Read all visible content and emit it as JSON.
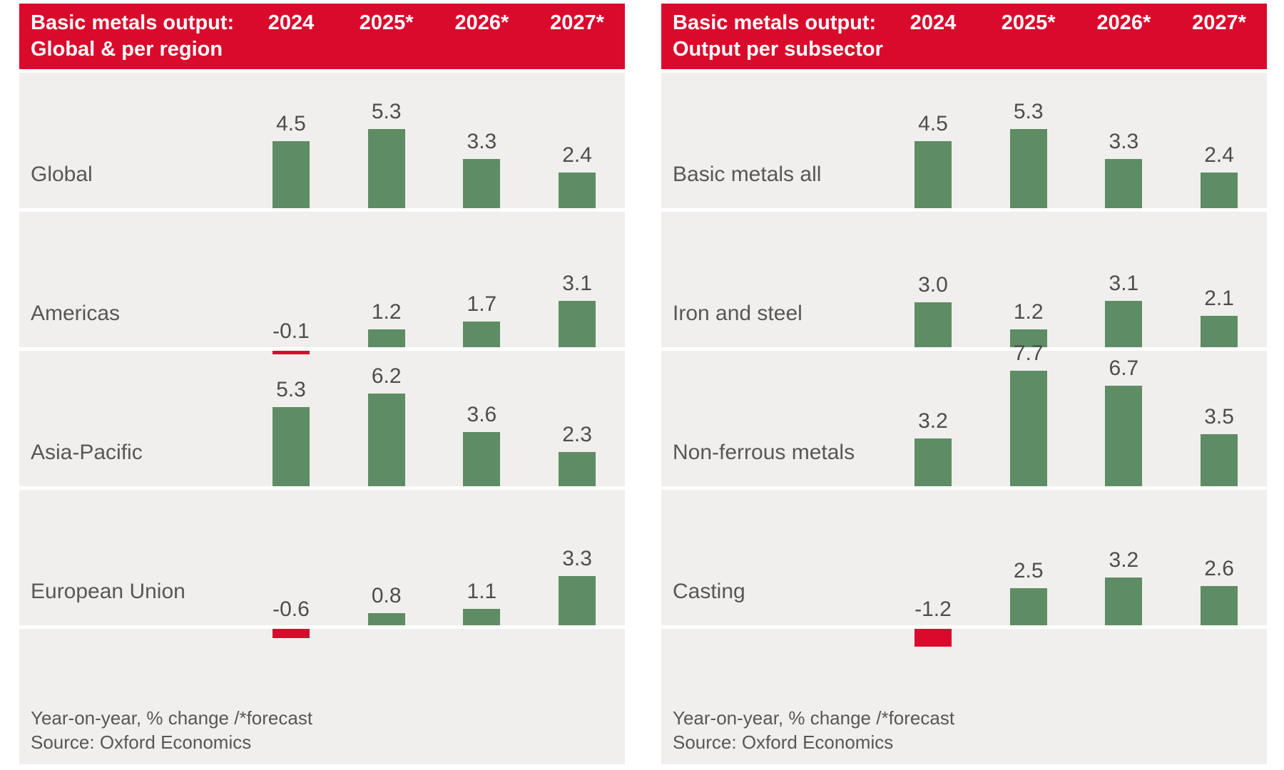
{
  "colors": {
    "header_red": "#DA0A2C",
    "bar_green": "#5E8C64",
    "bar_negative_red": "#DA0A2C",
    "row_background": "#F0EFED",
    "label_gray": "#575756",
    "value_gray": "#4D4D4C",
    "header_text": "#FFFFFF"
  },
  "footer": {
    "note": "Year-on-year, % change /*forecast",
    "source": "Source: Oxford Economics"
  },
  "chart_data": [
    {
      "type": "bar",
      "title": "Basic metals output: Global & per region",
      "title_line1": "Basic metals output:",
      "title_line2": "Global & per region",
      "columns": [
        "2024",
        "2025*",
        "2026*",
        "2027*"
      ],
      "unit": "Year-on-year % change, * = forecast",
      "rows": [
        {
          "label": "Global",
          "values": [
            4.5,
            5.3,
            3.3,
            2.4
          ]
        },
        {
          "label": "Americas",
          "values": [
            -0.1,
            1.2,
            1.7,
            3.1
          ]
        },
        {
          "label": "Asia-Pacific",
          "values": [
            5.3,
            6.2,
            3.6,
            2.3
          ]
        },
        {
          "label": "European Union",
          "values": [
            -0.6,
            0.8,
            1.1,
            3.3
          ]
        }
      ]
    },
    {
      "type": "bar",
      "title": "Basic metals output: Output per subsector",
      "title_line1": "Basic metals output:",
      "title_line2": "Output per subsector",
      "columns": [
        "2024",
        "2025*",
        "2026*",
        "2027*"
      ],
      "unit": "Year-on-year % change, * = forecast",
      "rows": [
        {
          "label": "Basic metals all",
          "values": [
            4.5,
            5.3,
            3.3,
            2.4
          ]
        },
        {
          "label": "Iron and steel",
          "values": [
            3.0,
            1.2,
            3.1,
            2.1
          ]
        },
        {
          "label": "Non-ferrous metals",
          "values": [
            3.2,
            7.7,
            6.7,
            3.5
          ]
        },
        {
          "label": "Casting",
          "values": [
            -1.2,
            2.5,
            3.2,
            2.6
          ]
        }
      ]
    }
  ]
}
